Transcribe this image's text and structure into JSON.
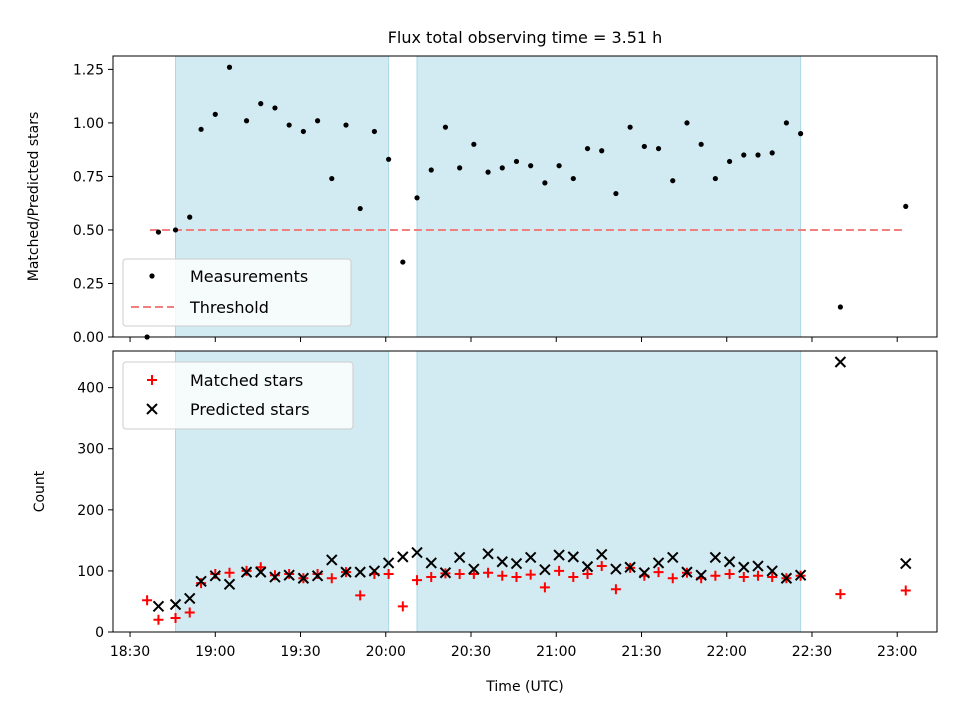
{
  "title": "Flux total observing time = 3.51 h",
  "colors": {
    "shade": "#add8e6",
    "threshold": "#f08080",
    "matched": "#ff0000",
    "predicted": "#000000"
  },
  "chart_data": [
    {
      "type": "scatter",
      "ylabel": "Matched/Predicted stars",
      "xlim": [
        "18:24",
        "23:14"
      ],
      "ylim": [
        0,
        1.3125
      ],
      "x_ticks": [
        "18:30",
        "19:00",
        "19:30",
        "20:00",
        "20:30",
        "21:00",
        "21:30",
        "22:00",
        "22:30",
        "23:00"
      ],
      "y_ticks": [
        "0.00",
        "0.25",
        "0.50",
        "0.75",
        "1.00",
        "1.25"
      ],
      "shaded_intervals": [
        [
          "18:46",
          "20:01"
        ],
        [
          "20:11",
          "22:26"
        ]
      ],
      "legend": {
        "position": "lower-left",
        "entries": [
          "Measurements",
          "Threshold"
        ]
      },
      "threshold": {
        "label": "Threshold",
        "y": 0.5,
        "x_range": [
          "18:37",
          "23:02"
        ]
      },
      "series": [
        {
          "name": "Measurements",
          "x": [
            "18:36",
            "18:40",
            "18:46",
            "18:51",
            "18:55",
            "19:00",
            "19:05",
            "19:11",
            "19:16",
            "19:21",
            "19:26",
            "19:31",
            "19:36",
            "19:41",
            "19:46",
            "19:51",
            "19:56",
            "20:01",
            "20:06",
            "20:11",
            "20:16",
            "20:21",
            "20:26",
            "20:31",
            "20:36",
            "20:41",
            "20:46",
            "20:51",
            "20:56",
            "21:01",
            "21:06",
            "21:11",
            "21:16",
            "21:21",
            "21:26",
            "21:31",
            "21:36",
            "21:41",
            "21:46",
            "21:51",
            "21:56",
            "22:01",
            "22:06",
            "22:11",
            "22:16",
            "22:21",
            "22:26",
            "22:40",
            "23:03"
          ],
          "y": [
            0.0,
            0.49,
            0.5,
            0.56,
            0.97,
            1.04,
            1.26,
            1.01,
            1.09,
            1.07,
            0.99,
            0.96,
            1.01,
            0.74,
            0.99,
            0.6,
            0.96,
            0.83,
            0.35,
            0.65,
            0.78,
            0.98,
            0.79,
            0.9,
            0.77,
            0.79,
            0.82,
            0.8,
            0.72,
            0.8,
            0.74,
            0.88,
            0.87,
            0.67,
            0.98,
            0.89,
            0.88,
            0.73,
            1.0,
            0.9,
            0.74,
            0.82,
            0.85,
            0.85,
            0.86,
            1.0,
            0.95,
            0.14,
            0.61
          ]
        }
      ]
    },
    {
      "type": "scatter",
      "xlabel": "Time (UTC)",
      "ylabel": "Count",
      "xlim": [
        "18:24",
        "23:14"
      ],
      "ylim": [
        0,
        460
      ],
      "x_ticks": [
        "18:30",
        "19:00",
        "19:30",
        "20:00",
        "20:30",
        "21:00",
        "21:30",
        "22:00",
        "22:30",
        "23:00"
      ],
      "y_ticks": [
        "0",
        "100",
        "200",
        "300",
        "400"
      ],
      "shaded_intervals": [
        [
          "18:46",
          "20:01"
        ],
        [
          "20:11",
          "22:26"
        ]
      ],
      "legend": {
        "position": "upper-left",
        "entries": [
          "Matched stars",
          "Predicted stars"
        ]
      },
      "series": [
        {
          "name": "Matched stars",
          "marker": "+",
          "x": [
            "18:36",
            "18:40",
            "18:46",
            "18:51",
            "18:55",
            "19:00",
            "19:05",
            "19:11",
            "19:16",
            "19:21",
            "19:26",
            "19:31",
            "19:36",
            "19:41",
            "19:46",
            "19:51",
            "19:56",
            "20:01",
            "20:06",
            "20:11",
            "20:16",
            "20:21",
            "20:26",
            "20:31",
            "20:36",
            "20:41",
            "20:46",
            "20:51",
            "20:56",
            "21:01",
            "21:06",
            "21:11",
            "21:16",
            "21:21",
            "21:26",
            "21:31",
            "21:36",
            "21:41",
            "21:46",
            "21:51",
            "21:56",
            "22:01",
            "22:06",
            "22:11",
            "22:16",
            "22:21",
            "22:26",
            "22:40",
            "23:03"
          ],
          "y": [
            52,
            20,
            23,
            32,
            80,
            95,
            97,
            100,
            106,
            93,
            95,
            88,
            95,
            88,
            98,
            60,
            95,
            95,
            42,
            85,
            90,
            96,
            95,
            95,
            97,
            92,
            90,
            94,
            73,
            100,
            90,
            95,
            108,
            70,
            105,
            92,
            98,
            88,
            97,
            88,
            92,
            95,
            90,
            92,
            90,
            88,
            92,
            62,
            68
          ]
        },
        {
          "name": "Predicted stars",
          "marker": "x",
          "x": [
            "18:40",
            "18:46",
            "18:51",
            "18:55",
            "19:00",
            "19:05",
            "19:11",
            "19:16",
            "19:21",
            "19:26",
            "19:31",
            "19:36",
            "19:41",
            "19:46",
            "19:51",
            "19:56",
            "20:01",
            "20:06",
            "20:11",
            "20:16",
            "20:21",
            "20:26",
            "20:31",
            "20:36",
            "20:41",
            "20:46",
            "20:51",
            "20:56",
            "21:01",
            "21:06",
            "21:11",
            "21:16",
            "21:21",
            "21:26",
            "21:31",
            "21:36",
            "21:41",
            "21:46",
            "21:51",
            "21:56",
            "22:01",
            "22:06",
            "22:11",
            "22:16",
            "22:21",
            "22:26",
            "22:40",
            "23:03"
          ],
          "y": [
            42,
            45,
            55,
            83,
            92,
            78,
            98,
            98,
            90,
            93,
            88,
            92,
            118,
            98,
            98,
            100,
            113,
            123,
            130,
            113,
            97,
            122,
            103,
            128,
            115,
            112,
            122,
            102,
            126,
            123,
            107,
            127,
            103,
            106,
            97,
            113,
            122,
            98,
            93,
            122,
            115,
            106,
            108,
            100,
            88,
            93,
            442,
            112
          ]
        }
      ]
    }
  ]
}
